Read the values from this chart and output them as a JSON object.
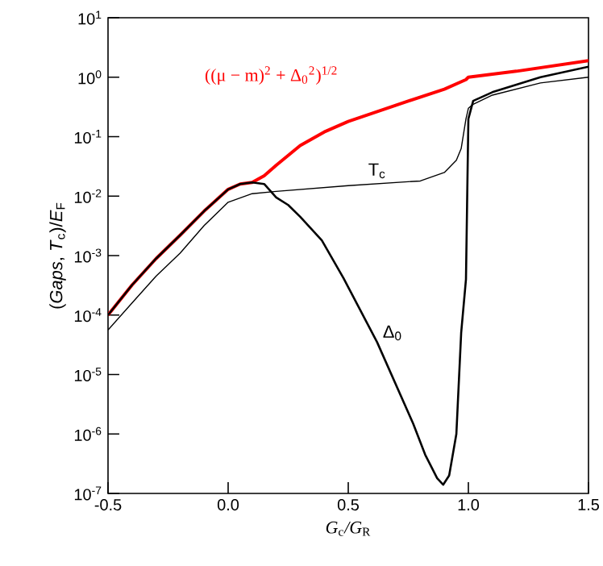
{
  "chart_data": {
    "type": "line",
    "xlabel": "*G*$_{c}$*/G*$_{R}$",
    "ylabel": "(*Gaps*, *T*$_{c}$)/*E*$_{F}$",
    "log": "y",
    "xlim": [
      -0.5,
      1.5
    ],
    "ylim": [
      1e-07,
      10
    ],
    "xticks": [
      {
        "value": -0.5,
        "label": "-0.5"
      },
      {
        "value": 0,
        "label": "0.0"
      },
      {
        "value": 0.5,
        "label": "0.5"
      },
      {
        "value": 1,
        "label": "1.0"
      },
      {
        "value": 1.5,
        "label": "1.5"
      }
    ],
    "yticks": [
      {
        "value": 1e-07,
        "label": "10$^{-7}$"
      },
      {
        "value": 1e-06,
        "label": "10$^{-6}$"
      },
      {
        "value": 1e-05,
        "label": "10$^{-5}$"
      },
      {
        "value": 0.0001,
        "label": "10$^{-4}$"
      },
      {
        "value": 0.001,
        "label": "10$^{-3}$"
      },
      {
        "value": 0.01,
        "label": "10$^{-2}$"
      },
      {
        "value": 0.1,
        "label": "10$^{-1}$"
      },
      {
        "value": 1,
        "label": "10$^{0}$"
      },
      {
        "value": 10,
        "label": "10$^{1}$"
      }
    ],
    "series": [
      {
        "name": "((μ − m)$^{2}$ + Δ$_{0}$$^{2}$)$^{1/2}$",
        "color": "#ff0000",
        "x": [
          -0.5,
          -0.4,
          -0.3,
          -0.2,
          -0.1,
          0,
          0.05,
          0.1,
          0.15,
          0.2,
          0.3,
          0.4,
          0.5,
          0.7,
          0.9,
          0.99,
          1.0,
          1.2,
          1.5
        ],
        "values": [
          0.0001,
          0.00032,
          0.00089,
          0.0022,
          0.0056,
          0.013,
          0.016,
          0.017,
          0.022,
          0.033,
          0.071,
          0.12,
          0.18,
          0.34,
          0.63,
          0.91,
          1.0,
          1.26,
          1.9
        ]
      },
      {
        "name": "T$_{c}$",
        "color": "#000000",
        "x": [
          -0.5,
          -0.4,
          -0.3,
          -0.2,
          -0.1,
          0,
          0.1,
          0.2,
          0.5,
          0.8,
          0.9,
          0.95,
          0.97,
          0.99,
          1.0,
          1.02,
          1.1,
          1.3,
          1.5
        ],
        "values": [
          5.6e-05,
          0.00016,
          0.00045,
          0.0011,
          0.0032,
          0.0079,
          0.011,
          0.012,
          0.015,
          0.018,
          0.025,
          0.04,
          0.063,
          0.2,
          0.3,
          0.35,
          0.5,
          0.8,
          1.0
        ]
      },
      {
        "name": "Δ$_{0}$",
        "color": "#000000",
        "x": [
          -0.5,
          -0.4,
          -0.3,
          -0.2,
          -0.1,
          0,
          0.05,
          0.1,
          0.15,
          0.2,
          0.25,
          0.3,
          0.39,
          0.48,
          0.62,
          0.77,
          0.82,
          0.87,
          0.895,
          0.92,
          0.95,
          0.97,
          0.99,
          1.0,
          1.02,
          1.1,
          1.3,
          1.5
        ],
        "values": [
          0.0001,
          0.00032,
          0.00089,
          0.0022,
          0.0056,
          0.013,
          0.016,
          0.017,
          0.016,
          0.0095,
          0.0071,
          0.0045,
          0.0018,
          0.00042,
          3.5e-05,
          1.5e-06,
          4.5e-07,
          1.8e-07,
          1.4e-07,
          2e-07,
          1e-06,
          5e-05,
          0.0004,
          0.2,
          0.4,
          0.56,
          1.0,
          1.5
        ]
      }
    ]
  }
}
